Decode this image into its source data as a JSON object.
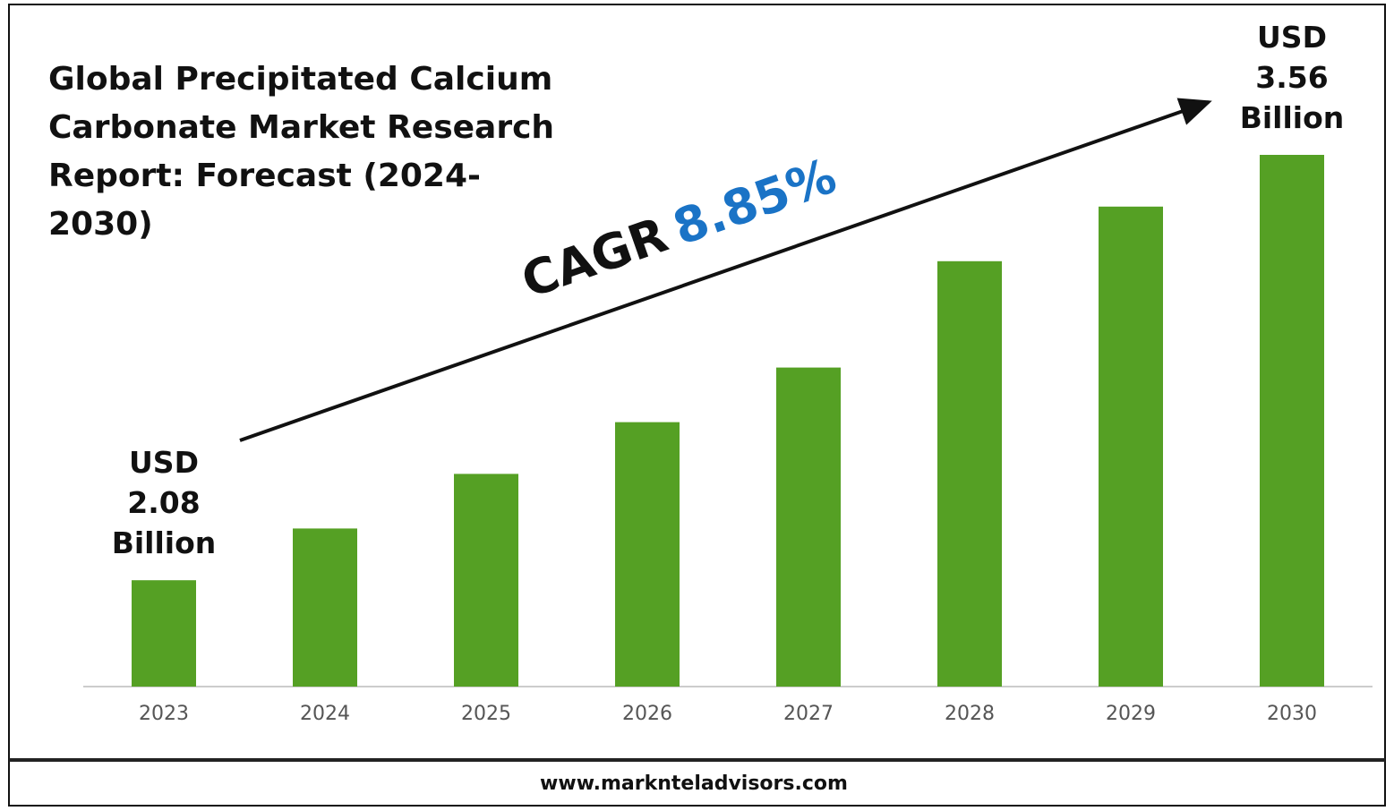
{
  "chart_data": {
    "type": "bar",
    "title": "Global Precipitated Calcium Carbonate Market Research Report: Forecast (2024-2030)",
    "categories": [
      "2023",
      "2024",
      "2025",
      "2026",
      "2027",
      "2028",
      "2029",
      "2030"
    ],
    "values": [
      2.08,
      2.26,
      2.45,
      2.63,
      2.82,
      3.19,
      3.38,
      3.56
    ],
    "value_labels": [
      "USD 2.08 Billion",
      null,
      null,
      null,
      null,
      null,
      null,
      "USD 3.56 Billion"
    ],
    "color": "#55a024",
    "ylim": [
      1.71,
      3.56
    ],
    "annotation": {
      "label": "CAGR",
      "value": "8.85%",
      "value_color": "#1a73c6"
    },
    "source": "www.marknteladvisors.com"
  }
}
